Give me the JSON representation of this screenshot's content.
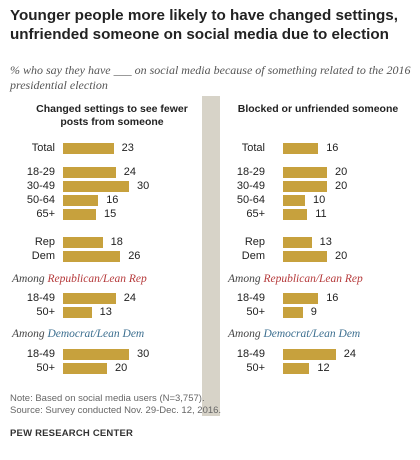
{
  "title": "Younger people more likely to have changed settings, unfriended someone on social media due to election",
  "subtitle": "% who say they have ___ on social media because of something related to the 2016 presidential election",
  "chart_data": {
    "type": "bar",
    "orientation": "horizontal",
    "panels": [
      {
        "title": "Changed settings to see fewer posts from someone"
      },
      {
        "title": "Blocked or unfriended someone"
      }
    ],
    "rows": [
      {
        "label": "Total",
        "values": [
          23,
          16
        ]
      },
      {
        "label": "18-29",
        "values": [
          24,
          20
        ]
      },
      {
        "label": "30-49",
        "values": [
          30,
          20
        ]
      },
      {
        "label": "50-64",
        "values": [
          16,
          10
        ]
      },
      {
        "label": "65+",
        "values": [
          15,
          11
        ]
      },
      {
        "label": "Rep",
        "values": [
          18,
          13
        ]
      },
      {
        "label": "Dem",
        "values": [
          26,
          20
        ]
      },
      {
        "label": "18-49",
        "group": "rep",
        "values": [
          24,
          16
        ]
      },
      {
        "label": "50+",
        "group": "rep",
        "values": [
          13,
          9
        ]
      },
      {
        "label": "18-49",
        "group": "dem",
        "values": [
          30,
          24
        ]
      },
      {
        "label": "50+",
        "group": "dem",
        "values": [
          20,
          12
        ]
      }
    ],
    "groups": {
      "rep": {
        "prefix": "Among",
        "name": "Republican/Lean Rep"
      },
      "dem": {
        "prefix": "Among",
        "name": "Democrat/Lean Dem"
      }
    },
    "bar_color": "#c7a13d",
    "rep_color": "#b5393a",
    "dem_color": "#3b6e8f"
  },
  "note": "Note: Based on social media users (N=3,757).",
  "source": "Source: Survey conducted Nov. 29-Dec. 12, 2016.",
  "brand": "PEW RESEARCH CENTER"
}
